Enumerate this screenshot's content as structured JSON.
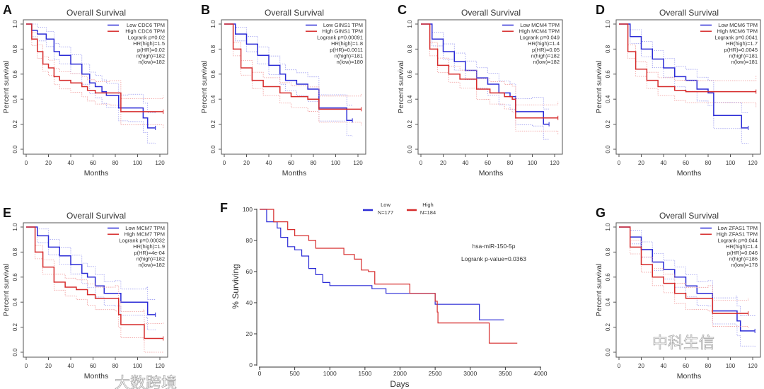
{
  "colors": {
    "low": "#2b2bd6",
    "high": "#d62b2b",
    "low_ci": "#9a9af0",
    "high_ci": "#f09a9a",
    "axis": "#555555"
  },
  "watermarks": [
    "大数跨境",
    "中科生信"
  ],
  "chart_data": [
    {
      "panel": "A",
      "type": "line",
      "title": "Overall Survival",
      "xlabel": "Months",
      "ylabel": "Percent survival",
      "xlim": [
        0,
        125
      ],
      "ylim": [
        0,
        1
      ],
      "xticks": [
        "0",
        "20",
        "40",
        "60",
        "80",
        "100",
        "120"
      ],
      "yticks": [
        "0.0",
        "0.2",
        "0.4",
        "0.6",
        "0.8",
        "1.0"
      ],
      "legend": [
        "Low CDC6 TPM",
        "High CDC6 TPM"
      ],
      "stats": [
        "Logrank p=0.02",
        "HR(high)=1.5",
        "p(HR)=0.02",
        "n(high)=182",
        "n(low)=182"
      ],
      "series": [
        {
          "name": "Low CDC6 TPM",
          "points": [
            [
              0,
              1
            ],
            [
              5,
              0.95
            ],
            [
              10,
              0.92
            ],
            [
              18,
              0.88
            ],
            [
              25,
              0.78
            ],
            [
              30,
              0.75
            ],
            [
              40,
              0.68
            ],
            [
              50,
              0.6
            ],
            [
              57,
              0.53
            ],
            [
              62,
              0.5
            ],
            [
              68,
              0.46
            ],
            [
              72,
              0.43
            ],
            [
              83,
              0.33
            ],
            [
              92,
              0.33
            ],
            [
              105,
              0.25
            ],
            [
              109,
              0.17
            ],
            [
              116,
              0.17
            ]
          ]
        },
        {
          "name": "High CDC6 TPM",
          "points": [
            [
              0,
              1
            ],
            [
              5,
              0.88
            ],
            [
              10,
              0.78
            ],
            [
              15,
              0.68
            ],
            [
              20,
              0.65
            ],
            [
              25,
              0.58
            ],
            [
              30,
              0.55
            ],
            [
              40,
              0.53
            ],
            [
              50,
              0.5
            ],
            [
              55,
              0.47
            ],
            [
              62,
              0.45
            ],
            [
              75,
              0.45
            ],
            [
              85,
              0.3
            ],
            [
              123,
              0.3
            ]
          ]
        }
      ]
    },
    {
      "panel": "B",
      "type": "line",
      "title": "Overall Survival",
      "xlabel": "Months",
      "ylabel": "Percent survival",
      "xlim": [
        0,
        125
      ],
      "ylim": [
        0,
        1
      ],
      "xticks": [
        "0",
        "20",
        "40",
        "60",
        "80",
        "100",
        "120"
      ],
      "yticks": [
        "0.0",
        "0.2",
        "0.4",
        "0.6",
        "0.8",
        "1.0"
      ],
      "legend": [
        "Low GINS1 TPM",
        "High GINS1 TPM"
      ],
      "stats": [
        "Logrank p=0.00091",
        "HR(high)=1.8",
        "p(HR)=0.0011",
        "n(high)=181",
        "n(low)=180"
      ],
      "series": [
        {
          "name": "Low GINS1 TPM",
          "points": [
            [
              0,
              1
            ],
            [
              10,
              0.92
            ],
            [
              20,
              0.84
            ],
            [
              30,
              0.75
            ],
            [
              40,
              0.67
            ],
            [
              50,
              0.6
            ],
            [
              55,
              0.55
            ],
            [
              65,
              0.52
            ],
            [
              75,
              0.48
            ],
            [
              85,
              0.33
            ],
            [
              110,
              0.23
            ],
            [
              115,
              0.23
            ]
          ]
        },
        {
          "name": "High GINS1 TPM",
          "points": [
            [
              0,
              1
            ],
            [
              8,
              0.8
            ],
            [
              15,
              0.65
            ],
            [
              25,
              0.55
            ],
            [
              35,
              0.5
            ],
            [
              50,
              0.45
            ],
            [
              60,
              0.42
            ],
            [
              75,
              0.4
            ],
            [
              85,
              0.32
            ],
            [
              123,
              0.32
            ]
          ]
        }
      ]
    },
    {
      "panel": "C",
      "type": "line",
      "title": "Overall Survival",
      "xlabel": "Months",
      "ylabel": "Percent survival",
      "xlim": [
        0,
        125
      ],
      "ylim": [
        0,
        1
      ],
      "xticks": [
        "0",
        "20",
        "40",
        "60",
        "80",
        "100",
        "120"
      ],
      "yticks": [
        "0.0",
        "0.2",
        "0.4",
        "0.6",
        "0.8",
        "1.0"
      ],
      "legend": [
        "Low MCM4 TPM",
        "High MCM4 TPM"
      ],
      "stats": [
        "Logrank p=0.049",
        "HR(high)=1.4",
        "p(HR)=0.05",
        "n(high)=182",
        "n(low)=182"
      ],
      "series": [
        {
          "name": "Low MCM4 TPM",
          "points": [
            [
              0,
              1
            ],
            [
              10,
              0.88
            ],
            [
              20,
              0.78
            ],
            [
              30,
              0.7
            ],
            [
              40,
              0.63
            ],
            [
              50,
              0.57
            ],
            [
              60,
              0.52
            ],
            [
              70,
              0.45
            ],
            [
              80,
              0.42
            ],
            [
              85,
              0.3
            ],
            [
              100,
              0.3
            ],
            [
              110,
              0.2
            ],
            [
              115,
              0.2
            ]
          ]
        },
        {
          "name": "High MCM4 TPM",
          "points": [
            [
              0,
              1
            ],
            [
              8,
              0.8
            ],
            [
              15,
              0.67
            ],
            [
              25,
              0.6
            ],
            [
              35,
              0.56
            ],
            [
              50,
              0.48
            ],
            [
              62,
              0.45
            ],
            [
              75,
              0.42
            ],
            [
              82,
              0.4
            ],
            [
              85,
              0.25
            ],
            [
              123,
              0.25
            ]
          ]
        }
      ]
    },
    {
      "panel": "D",
      "type": "line",
      "title": "Overall Survival",
      "xlabel": "Months",
      "ylabel": "Percent survival",
      "xlim": [
        0,
        125
      ],
      "ylim": [
        0,
        1
      ],
      "xticks": [
        "0",
        "20",
        "40",
        "60",
        "80",
        "100",
        "120"
      ],
      "yticks": [
        "0.0",
        "0.2",
        "0.4",
        "0.6",
        "0.8",
        "1.0"
      ],
      "legend": [
        "Low MCM6 TPM",
        "High MCM6 TPM"
      ],
      "stats": [
        "Logrank p=0.0041",
        "HR(high)=1.7",
        "p(HR)=0.0045",
        "n(high)=181",
        "n(low)=181"
      ],
      "series": [
        {
          "name": "Low MCM6 TPM",
          "points": [
            [
              0,
              1
            ],
            [
              10,
              0.9
            ],
            [
              20,
              0.8
            ],
            [
              30,
              0.72
            ],
            [
              40,
              0.65
            ],
            [
              50,
              0.58
            ],
            [
              60,
              0.55
            ],
            [
              70,
              0.48
            ],
            [
              80,
              0.45
            ],
            [
              85,
              0.27
            ],
            [
              110,
              0.17
            ],
            [
              116,
              0.17
            ]
          ]
        },
        {
          "name": "High MCM6 TPM",
          "points": [
            [
              0,
              1
            ],
            [
              8,
              0.78
            ],
            [
              15,
              0.64
            ],
            [
              25,
              0.55
            ],
            [
              35,
              0.5
            ],
            [
              50,
              0.47
            ],
            [
              60,
              0.46
            ],
            [
              123,
              0.46
            ]
          ]
        }
      ]
    },
    {
      "panel": "E",
      "type": "line",
      "title": "Overall Survival",
      "xlabel": "Months",
      "ylabel": "Percent survival",
      "xlim": [
        0,
        125
      ],
      "ylim": [
        0,
        1
      ],
      "xticks": [
        "0",
        "20",
        "40",
        "60",
        "80",
        "100",
        "120"
      ],
      "yticks": [
        "0.0",
        "0.2",
        "0.4",
        "0.6",
        "0.8",
        "1.0"
      ],
      "legend": [
        "Low MCM7 TPM",
        "High MCM7 TPM"
      ],
      "stats": [
        "Logrank p=0.00032",
        "HR(high)=1.9",
        "p(HR)=4e-04",
        "n(high)=182",
        "n(low)=182"
      ],
      "series": [
        {
          "name": "Low MCM7 TPM",
          "points": [
            [
              0,
              1
            ],
            [
              10,
              0.93
            ],
            [
              20,
              0.84
            ],
            [
              30,
              0.77
            ],
            [
              40,
              0.7
            ],
            [
              50,
              0.63
            ],
            [
              55,
              0.6
            ],
            [
              62,
              0.53
            ],
            [
              70,
              0.47
            ],
            [
              80,
              0.47
            ],
            [
              85,
              0.4
            ],
            [
              108,
              0.4
            ],
            [
              109,
              0.3
            ],
            [
              116,
              0.3
            ]
          ]
        },
        {
          "name": "High MCM7 TPM",
          "points": [
            [
              0,
              1
            ],
            [
              8,
              0.8
            ],
            [
              15,
              0.68
            ],
            [
              25,
              0.56
            ],
            [
              35,
              0.52
            ],
            [
              45,
              0.5
            ],
            [
              55,
              0.46
            ],
            [
              62,
              0.43
            ],
            [
              80,
              0.43
            ],
            [
              83,
              0.3
            ],
            [
              85,
              0.22
            ],
            [
              105,
              0.22
            ],
            [
              106,
              0.11
            ],
            [
              123,
              0.11
            ]
          ]
        }
      ]
    },
    {
      "panel": "F",
      "type": "line",
      "title": "",
      "xlabel": "Days",
      "ylabel": "% Surviving",
      "xlim": [
        0,
        4000
      ],
      "ylim": [
        0,
        100
      ],
      "xticks": [
        "0",
        "500",
        "1000",
        "1500",
        "2000",
        "2500",
        "3000",
        "3500",
        "4000"
      ],
      "yticks": [
        "0",
        "20",
        "40",
        "60",
        "80",
        "100"
      ],
      "legend": [
        "Low",
        "High"
      ],
      "legend_n": [
        "N=177",
        "N=184"
      ],
      "annotation": [
        "hsa-miR-150-5p",
        "Logrank p-value=0.0363"
      ],
      "series": [
        {
          "name": "Low",
          "points": [
            [
              0,
              100
            ],
            [
              100,
              92
            ],
            [
              250,
              88
            ],
            [
              300,
              82
            ],
            [
              400,
              76
            ],
            [
              500,
              74
            ],
            [
              600,
              70
            ],
            [
              700,
              62
            ],
            [
              800,
              58
            ],
            [
              900,
              53
            ],
            [
              1000,
              51
            ],
            [
              1500,
              51
            ],
            [
              1600,
              49
            ],
            [
              1800,
              46
            ],
            [
              2450,
              46
            ],
            [
              2500,
              39
            ],
            [
              3120,
              39
            ],
            [
              3130,
              29
            ],
            [
              3480,
              29
            ]
          ]
        },
        {
          "name": "High",
          "points": [
            [
              0,
              100
            ],
            [
              200,
              92
            ],
            [
              400,
              87
            ],
            [
              500,
              83
            ],
            [
              700,
              80
            ],
            [
              800,
              75
            ],
            [
              1050,
              75
            ],
            [
              1200,
              71
            ],
            [
              1350,
              68
            ],
            [
              1450,
              61
            ],
            [
              1550,
              60
            ],
            [
              1640,
              52
            ],
            [
              2130,
              52
            ],
            [
              2140,
              46
            ],
            [
              2470,
              46
            ],
            [
              2500,
              41
            ],
            [
              2530,
              34
            ],
            [
              2540,
              27
            ],
            [
              3260,
              27
            ],
            [
              3270,
              14
            ],
            [
              3670,
              14
            ]
          ]
        }
      ]
    },
    {
      "panel": "G",
      "type": "line",
      "title": "Overall Survival",
      "xlabel": "Months",
      "ylabel": "Percent survival",
      "xlim": [
        0,
        125
      ],
      "ylim": [
        0,
        1
      ],
      "xticks": [
        "0",
        "20",
        "40",
        "60",
        "80",
        "100",
        "120"
      ],
      "yticks": [
        "0.0",
        "0.2",
        "0.4",
        "0.6",
        "0.8",
        "1.0"
      ],
      "legend": [
        "Low ZFAS1 TPM",
        "High ZFAS1 TPM"
      ],
      "stats": [
        "Logrank p=0.044",
        "HR(high)=1.4",
        "p(HR)=0.046",
        "n(high)=186",
        "n(low)=178"
      ],
      "series": [
        {
          "name": "Low ZFAS1 TPM",
          "points": [
            [
              0,
              1
            ],
            [
              10,
              0.92
            ],
            [
              20,
              0.82
            ],
            [
              30,
              0.72
            ],
            [
              40,
              0.66
            ],
            [
              50,
              0.6
            ],
            [
              60,
              0.53
            ],
            [
              70,
              0.47
            ],
            [
              80,
              0.47
            ],
            [
              84,
              0.33
            ],
            [
              105,
              0.33
            ],
            [
              106,
              0.25
            ],
            [
              109,
              0.17
            ],
            [
              122,
              0.17
            ]
          ]
        },
        {
          "name": "High ZFAS1 TPM",
          "points": [
            [
              0,
              1
            ],
            [
              10,
              0.84
            ],
            [
              20,
              0.7
            ],
            [
              30,
              0.6
            ],
            [
              40,
              0.55
            ],
            [
              50,
              0.47
            ],
            [
              60,
              0.43
            ],
            [
              80,
              0.43
            ],
            [
              84,
              0.31
            ],
            [
              116,
              0.31
            ]
          ]
        }
      ]
    }
  ]
}
